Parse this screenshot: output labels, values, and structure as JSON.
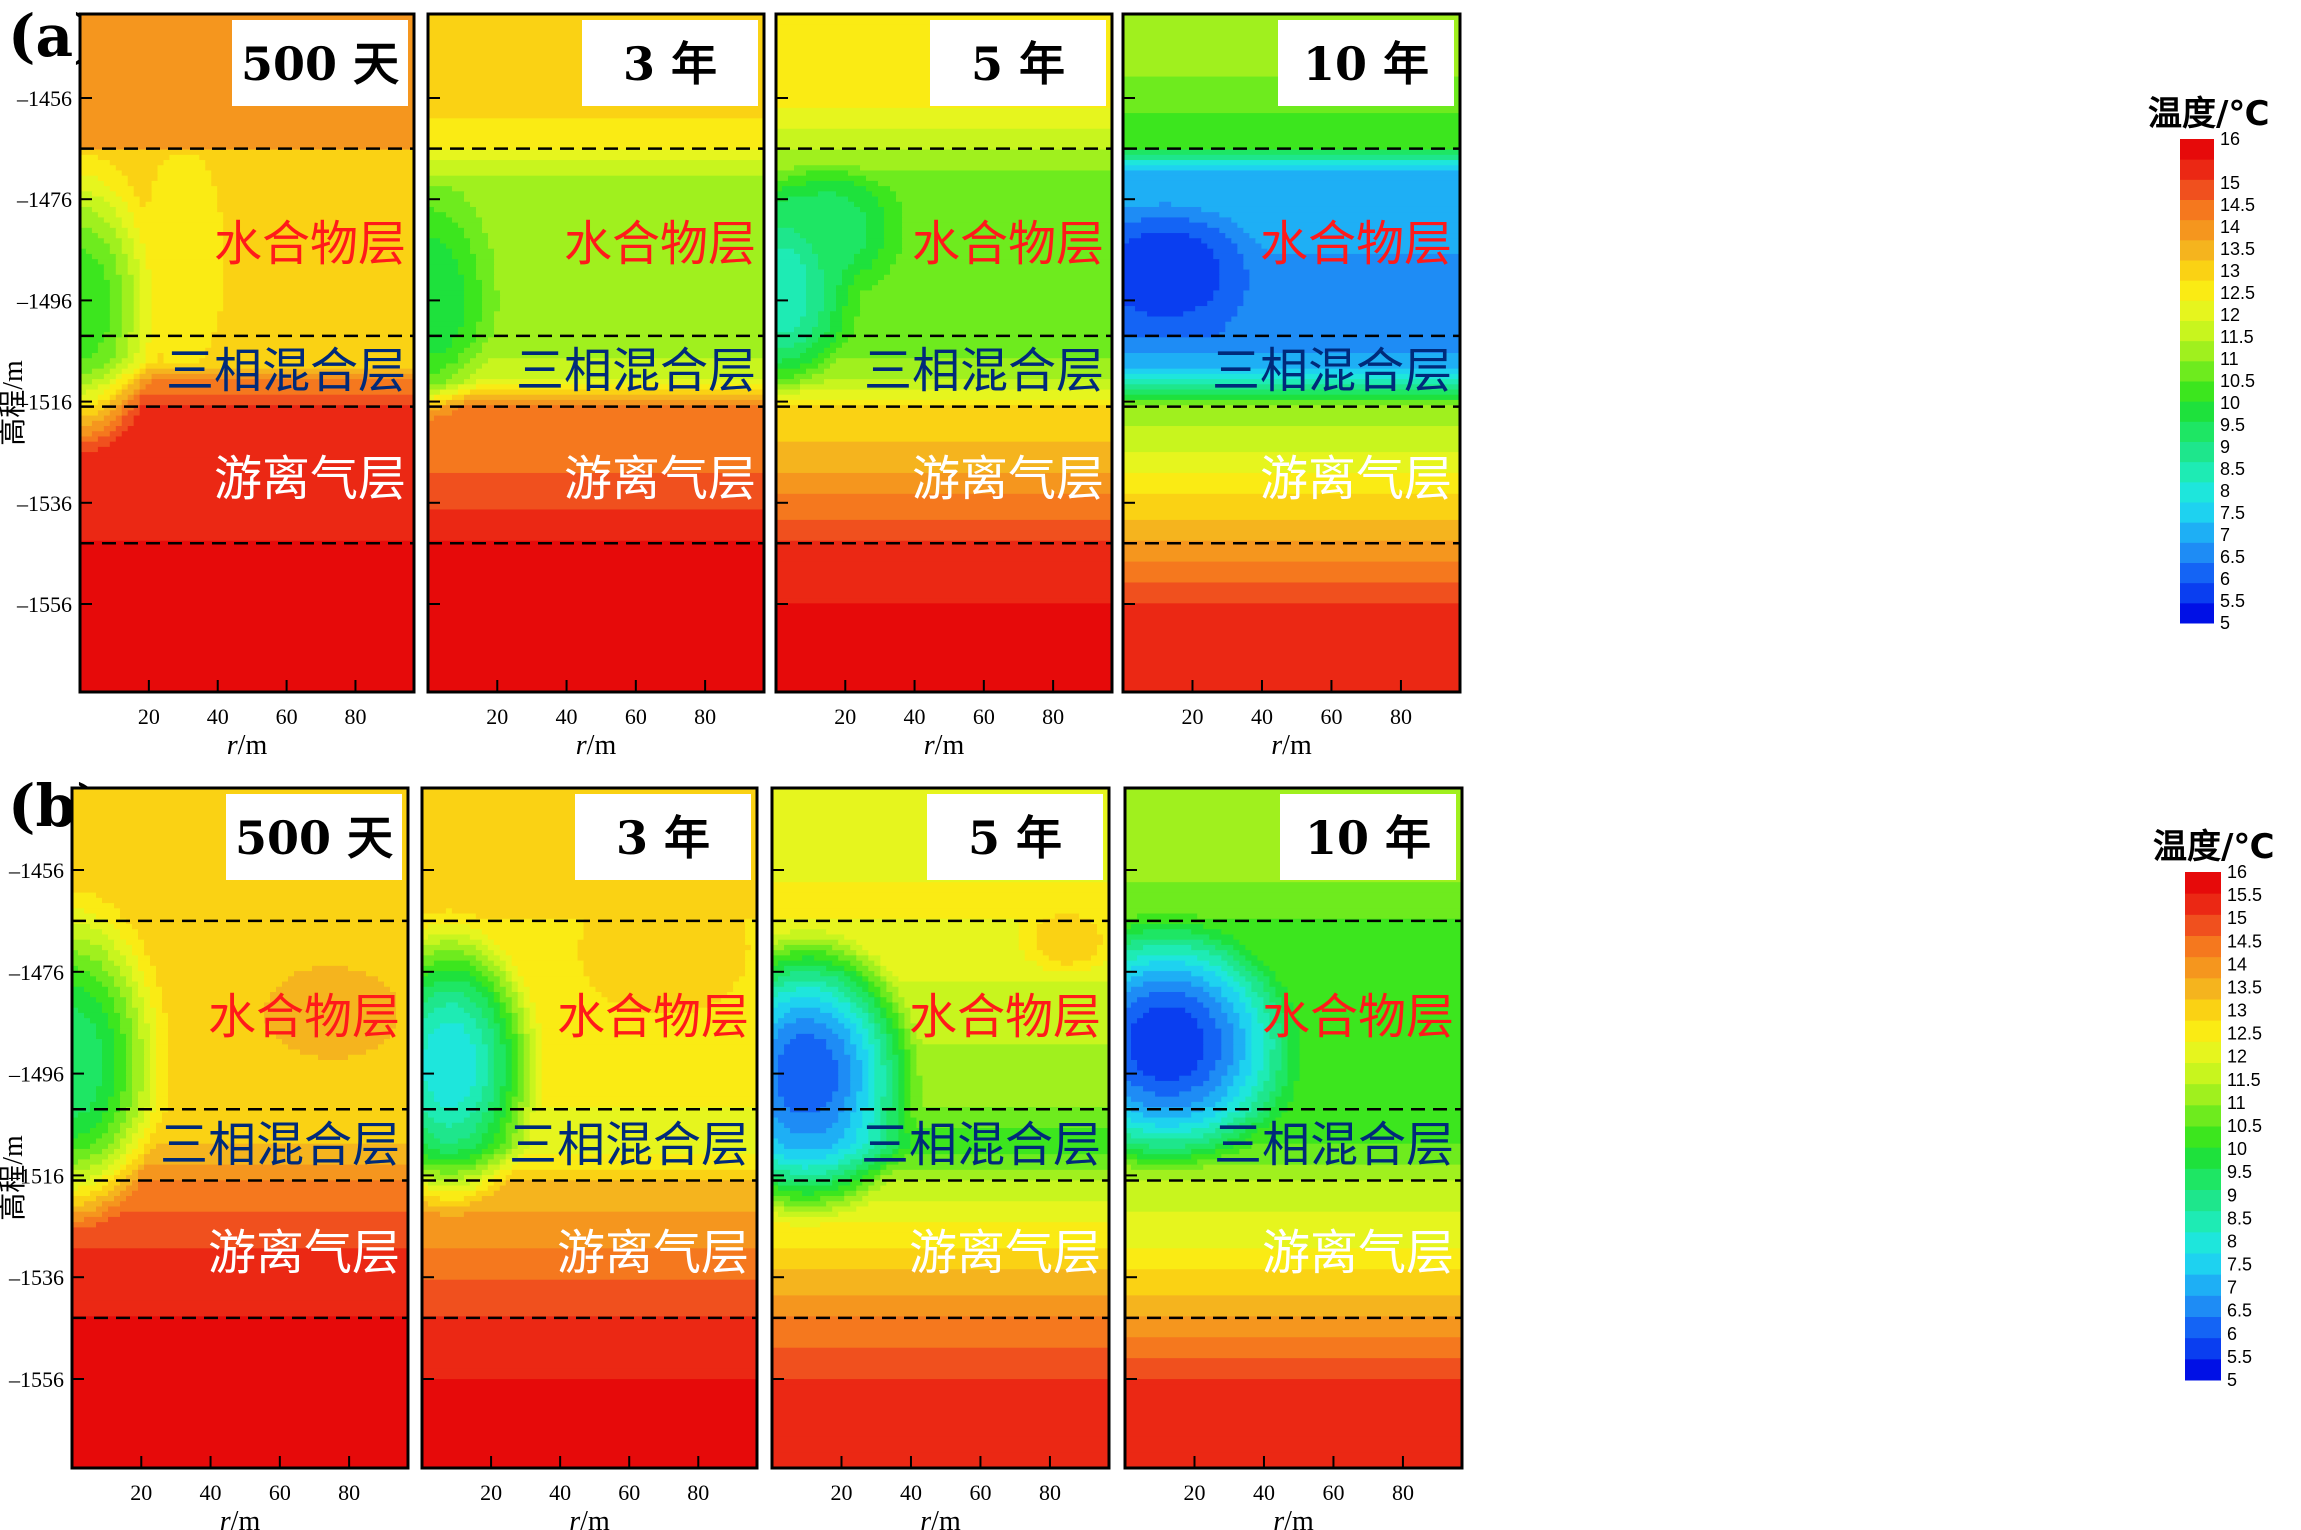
{
  "chart_data": {
    "type": "heatmap",
    "panel_letters": [
      "(a)",
      "(b)"
    ],
    "time_labels": [
      "500 天",
      "3 年",
      "5 年",
      "10 年"
    ],
    "y_axis": {
      "label": "高程/m",
      "ticks": [
        -1456,
        -1476,
        -1496,
        -1516,
        -1536,
        -1556
      ],
      "range": [
        -1573,
        -1438
      ]
    },
    "x_axis": {
      "label": "r/m",
      "label_italic": "r",
      "label_unit": "/m",
      "ticks": [
        20,
        40,
        60,
        80
      ],
      "range": [
        0,
        97
      ]
    },
    "layer_boundaries": [
      -1466,
      -1503,
      -1517,
      -1544
    ],
    "layers": [
      {
        "name": "水合物层",
        "color": "#ff1a1a"
      },
      {
        "name": "三相混合层",
        "color": "#002a7a"
      },
      {
        "name": "游离气层",
        "color": "#ffffff"
      }
    ],
    "colorbar": {
      "title": "温度/℃",
      "levels": [
        16,
        15.5,
        15,
        14.5,
        14,
        13.5,
        13,
        12.5,
        12,
        11.5,
        11,
        10.5,
        10,
        9.5,
        9,
        8.5,
        8,
        7.5,
        7,
        6.5,
        6,
        5.5,
        5
      ],
      "a_labels": [
        "16",
        "15",
        "14.5",
        "14",
        "13.5",
        "13",
        "12.5",
        "12",
        "11.5",
        "11",
        "10.5",
        "10",
        "9.5",
        "9",
        "8.5",
        "8",
        "7.5",
        "7",
        "6.5",
        "6",
        "5.5",
        "5"
      ],
      "b_labels": [
        "16",
        "15.5",
        "15",
        "14.5",
        "14",
        "13.5",
        "13",
        "12.5",
        "12",
        "11.5",
        "11",
        "10.5",
        "10",
        "9.5",
        "9",
        "8.5",
        "8",
        "7.5",
        "7",
        "6.5",
        "6",
        "5.5",
        "5"
      ],
      "range": [
        5,
        16
      ],
      "colors": [
        "#0010e6",
        "#0a3ef0",
        "#1464f5",
        "#1e8cf5",
        "#1eaff5",
        "#1ed2f0",
        "#1ee6dc",
        "#1eebb4",
        "#1ee68c",
        "#1ee664",
        "#1ee13c",
        "#3ce61e",
        "#6eeb1e",
        "#a0f01e",
        "#c8f51e",
        "#e6f51e",
        "#faeb14",
        "#fad214",
        "#f5b41e",
        "#f5961e",
        "#f5781e",
        "#f0501e",
        "#eb2814",
        "#e60a0a"
      ]
    },
    "series": [
      {
        "row": "a",
        "panel": "500 天",
        "bg": [
          [
            -1438,
            14
          ],
          [
            -1466,
            14
          ],
          [
            -1467,
            13
          ],
          [
            -1503,
            13
          ],
          [
            -1508,
            13
          ],
          [
            -1512,
            14.5
          ],
          [
            -1517,
            15.5
          ],
          [
            -1522,
            15.5
          ],
          [
            -1544,
            16
          ],
          [
            -1573,
            16
          ]
        ],
        "anomalies": [
          {
            "r": 0,
            "y": -1497,
            "rr": 24,
            "ry": 30,
            "min": 10
          },
          {
            "r": 30,
            "y": -1488,
            "rr": 12,
            "ry": 22,
            "min": 12.5
          }
        ]
      },
      {
        "row": "a",
        "panel": "3 年",
        "bg": [
          [
            -1438,
            13.5
          ],
          [
            -1460,
            13
          ],
          [
            -1466,
            12.5
          ],
          [
            -1474,
            11
          ],
          [
            -1503,
            11
          ],
          [
            -1512,
            12
          ],
          [
            -1517,
            14.5
          ],
          [
            -1530,
            15
          ],
          [
            -1544,
            16
          ],
          [
            -1573,
            16
          ]
        ],
        "anomalies": [
          {
            "r": 0,
            "y": -1496,
            "rr": 20,
            "ry": 24,
            "min": 9.5
          },
          {
            "r": 60,
            "y": -1438,
            "rr": 15,
            "ry": 10,
            "min": 13.5
          }
        ]
      },
      {
        "row": "a",
        "panel": "5 年",
        "bg": [
          [
            -1438,
            13
          ],
          [
            -1458,
            12.5
          ],
          [
            -1466,
            11.5
          ],
          [
            -1474,
            10.5
          ],
          [
            -1503,
            10.5
          ],
          [
            -1512,
            11.5
          ],
          [
            -1517,
            13
          ],
          [
            -1530,
            14
          ],
          [
            -1544,
            15.5
          ],
          [
            -1556,
            16
          ],
          [
            -1573,
            16
          ]
        ],
        "anomalies": [
          {
            "r": 0,
            "y": -1494,
            "rr": 24,
            "ry": 22,
            "min": 8
          },
          {
            "r": 15,
            "y": -1482,
            "rr": 22,
            "ry": 14,
            "min": 9
          }
        ]
      },
      {
        "row": "a",
        "panel": "10 年",
        "bg": [
          [
            -1438,
            11.5
          ],
          [
            -1452,
            11
          ],
          [
            -1466,
            10
          ],
          [
            -1470,
            7
          ],
          [
            -1503,
            6
          ],
          [
            -1510,
            7
          ],
          [
            -1517,
            11
          ],
          [
            -1530,
            12.5
          ],
          [
            -1544,
            14
          ],
          [
            -1556,
            15.5
          ],
          [
            -1573,
            16
          ]
        ],
        "anomalies": [
          {
            "r": 12,
            "y": -1490,
            "rr": 30,
            "ry": 15,
            "min": 5
          }
        ]
      },
      {
        "row": "b",
        "panel": "500 天",
        "bg": [
          [
            -1438,
            13
          ],
          [
            -1466,
            13
          ],
          [
            -1503,
            13
          ],
          [
            -1510,
            13.5
          ],
          [
            -1517,
            14.5
          ],
          [
            -1530,
            15.5
          ],
          [
            -1544,
            16
          ],
          [
            -1573,
            16
          ]
        ],
        "anomalies": [
          {
            "r": 0,
            "y": -1494,
            "rr": 28,
            "ry": 34,
            "min": 9
          },
          {
            "r": 75,
            "y": -1484,
            "rr": 30,
            "ry": 14,
            "min": 14,
            "mode": "max"
          }
        ]
      },
      {
        "row": "b",
        "panel": "3 年",
        "bg": [
          [
            -1438,
            13
          ],
          [
            -1466,
            13
          ],
          [
            -1503,
            12.5
          ],
          [
            -1510,
            12
          ],
          [
            -1517,
            13.5
          ],
          [
            -1530,
            14.5
          ],
          [
            -1544,
            15.5
          ],
          [
            -1556,
            16
          ],
          [
            -1573,
            16
          ]
        ],
        "anomalies": [
          {
            "r": 8,
            "y": -1494,
            "rr": 28,
            "ry": 30,
            "min": 7.5
          },
          {
            "r": 70,
            "y": -1474,
            "rr": 28,
            "ry": 14,
            "min": 13.5,
            "mode": "max"
          }
        ]
      },
      {
        "row": "b",
        "panel": "5 年",
        "bg": [
          [
            -1438,
            12
          ],
          [
            -1458,
            12.5
          ],
          [
            -1466,
            12.5
          ],
          [
            -1503,
            11
          ],
          [
            -1510,
            10
          ],
          [
            -1517,
            11.5
          ],
          [
            -1530,
            13
          ],
          [
            -1544,
            14.5
          ],
          [
            -1556,
            15.5
          ],
          [
            -1573,
            16
          ]
        ],
        "anomalies": [
          {
            "r": 10,
            "y": -1496,
            "rr": 34,
            "ry": 30,
            "min": 5.5
          },
          {
            "r": 85,
            "y": -1470,
            "rr": 16,
            "ry": 8,
            "min": 13.5,
            "mode": "max"
          }
        ]
      },
      {
        "row": "b",
        "panel": "10 年",
        "bg": [
          [
            -1438,
            11.5
          ],
          [
            -1458,
            11
          ],
          [
            -1466,
            10.5
          ],
          [
            -1503,
            10
          ],
          [
            -1510,
            10.5
          ],
          [
            -1517,
            11.5
          ],
          [
            -1530,
            12.5
          ],
          [
            -1544,
            14
          ],
          [
            -1556,
            15.5
          ],
          [
            -1573,
            16
          ]
        ],
        "anomalies": [
          {
            "r": 12,
            "y": -1490,
            "rr": 40,
            "ry": 26,
            "min": 5
          }
        ]
      }
    ]
  }
}
